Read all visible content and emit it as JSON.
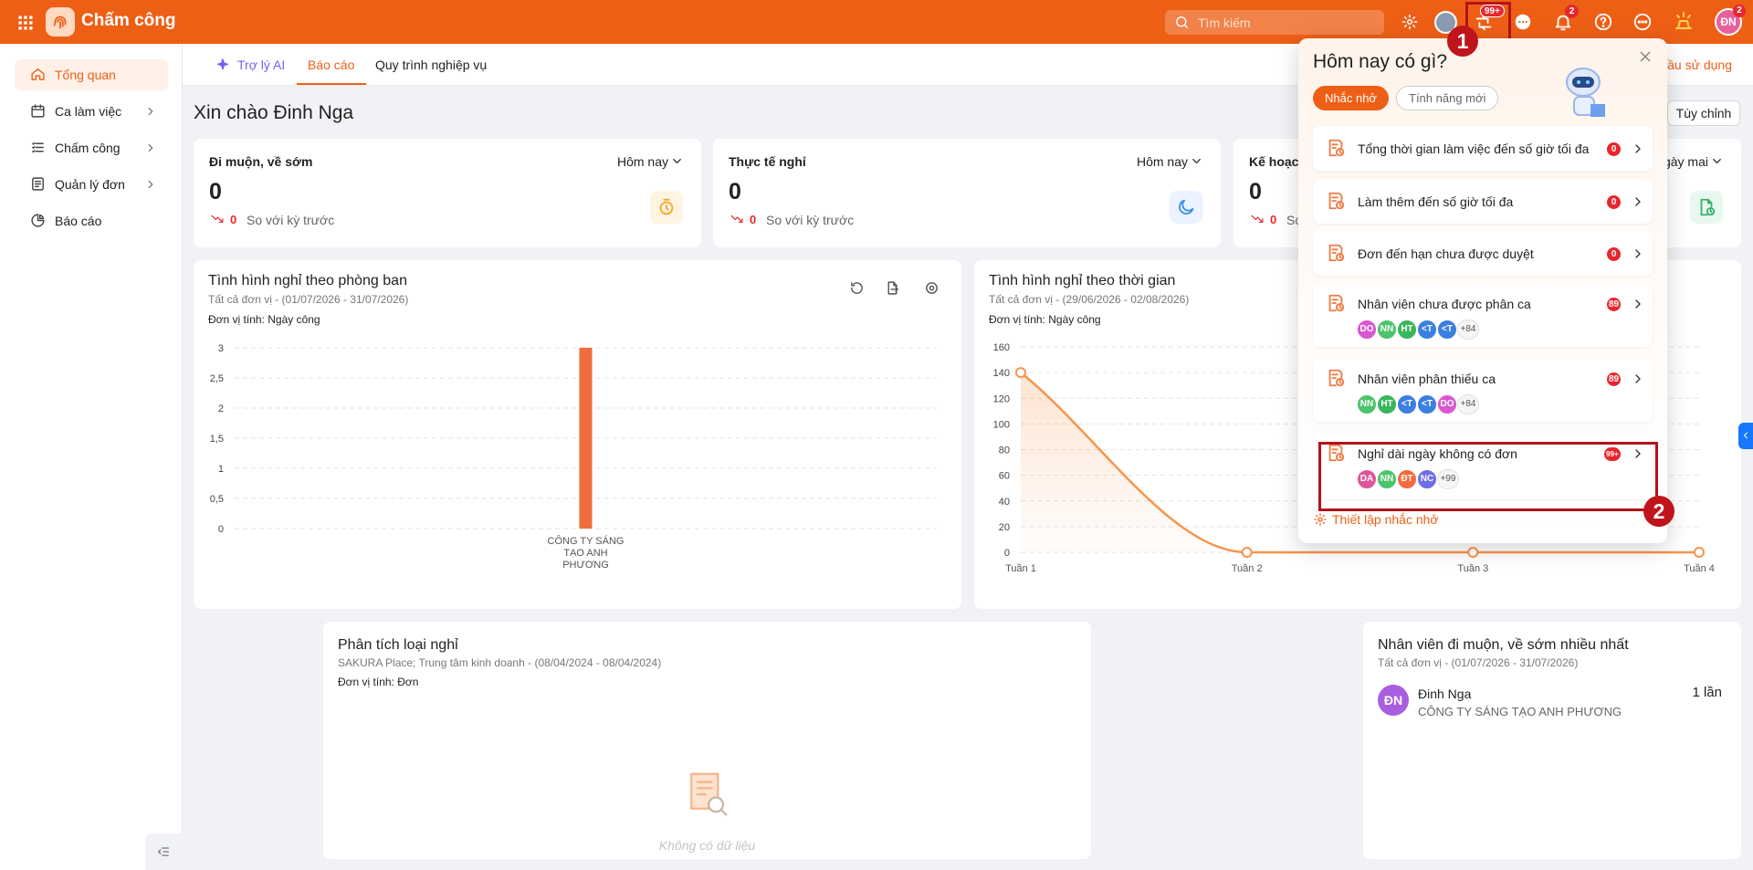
{
  "header": {
    "app_name": "Chấm công",
    "search_placeholder": "Tìm kiếm",
    "request_badge": "99+",
    "notification_badge": "2",
    "user_initials": "ĐN",
    "user_badge": "2"
  },
  "sidebar": {
    "items": [
      "Tổng quan",
      "Ca làm việc",
      "Chấm công",
      "Quản lý đơn",
      "Báo cáo"
    ]
  },
  "tabs": [
    "Trợ lý AI",
    "Báo cáo",
    "Quy trình nghiệp vụ"
  ],
  "greeting": "Xin chào Đinh Nga",
  "guide_link": "ầu sử dụng",
  "customize": "Tùy chỉnh",
  "stat_cards": [
    {
      "title": "Đi muộn, về sớm",
      "period": "Hôm nay",
      "value": 0,
      "change": 0,
      "compare": "So với kỳ trước"
    },
    {
      "title": "Thực tế nghỉ",
      "period": "Hôm nay",
      "value": 0,
      "change": 0,
      "compare": "So với kỳ trước"
    },
    {
      "title": "Kế hoạch nghỉ",
      "period": "Ngày mai",
      "value": 0,
      "change": 0,
      "compare": "So với kỳ trước"
    }
  ],
  "chart_data": [
    {
      "type": "bar",
      "title": "Tình hình nghỉ theo phòng ban",
      "subtitle": "Tất cả đơn vị - (01/07/2026 - 31/07/2026)",
      "unit_label": "Đơn vị tính: Ngày công",
      "categories": [
        "CÔNG TY SÁNG TẠO ANH PHƯƠNG"
      ],
      "values": [
        3
      ],
      "color": "#f26b3a",
      "ylim": [
        0,
        3
      ],
      "yticks": [
        0,
        {
          "value": 0.5,
          "label": "0,5"
        },
        1,
        {
          "value": 1.5,
          "label": "1,5"
        },
        2,
        {
          "value": 2.5,
          "label": "2,5"
        },
        3
      ],
      "grid": true
    },
    {
      "type": "line",
      "title": "Tình hình nghỉ theo thời gian",
      "subtitle": "Tất cả đơn vị - (29/06/2026 - 02/08/2026)",
      "unit_label": "Đơn vị tính: Ngày công",
      "categories": [
        "Tuần 1",
        "Tuần 2",
        "Tuần 3",
        "Tuần 4"
      ],
      "values": [
        140,
        0,
        0,
        0
      ],
      "color": "#f7944a",
      "ylim": [
        0,
        160
      ],
      "yticks": [
        0,
        20,
        40,
        60,
        80,
        100,
        120,
        140,
        160
      ],
      "grid": true
    }
  ],
  "leave_analysis": {
    "title": "Phân tích loại nghỉ",
    "subtitle": "SAKURA Place; Trung tâm kinh doanh - (08/04/2024 - 08/04/2024)",
    "unit_label": "Đơn vị tính: Đơn",
    "empty": "Không có dữ liệu"
  },
  "top_late": {
    "title": "Nhân viên đi muộn, về sớm nhiều nhất",
    "subtitle": "Tất cả đơn vị - (01/07/2026 - 31/07/2026)",
    "rows": [
      {
        "initials": "ĐN",
        "name": "Đinh Nga",
        "company": "CÔNG TY SÁNG TẠO ANH PHƯƠNG",
        "count": "1 lần"
      }
    ]
  },
  "popup": {
    "title": "Hôm nay có gì?",
    "tabs": [
      "Nhắc nhở",
      "Tính năng mới"
    ],
    "items": [
      {
        "label": "Tổng thời gian làm việc đến số giờ tối đa",
        "badge": "0"
      },
      {
        "label": "Làm thêm đến số giờ tối đa",
        "badge": "0"
      },
      {
        "label": "Đơn đến hạn chưa được duyệt",
        "badge": "0"
      },
      {
        "label": "Nhân viên chưa được phân ca",
        "badge": "89",
        "avatars": [
          {
            "initials": "DO",
            "color": "#d957d0"
          },
          {
            "initials": "NN",
            "color": "#4cc46a"
          },
          {
            "initials": "HT",
            "color": "#3bb55e"
          },
          {
            "initials": "<T",
            "color": "#3b7fe0"
          },
          {
            "initials": "<T",
            "color": "#3b7fe0"
          }
        ],
        "more": "+84"
      },
      {
        "label": "Nhân viên phân thiếu ca",
        "badge": "89",
        "avatars": [
          {
            "initials": "NN",
            "color": "#4cc46a"
          },
          {
            "initials": "HT",
            "color": "#3bb55e"
          },
          {
            "initials": "<T",
            "color": "#3b7fe0"
          },
          {
            "initials": "<T",
            "color": "#3b7fe0"
          },
          {
            "initials": "DO",
            "color": "#d957d0"
          }
        ],
        "more": "+84"
      },
      {
        "label": "Nghỉ dài ngày không có đơn",
        "badge": "99+",
        "avatars": [
          {
            "initials": "DA",
            "color": "#e0559a"
          },
          {
            "initials": "NN",
            "color": "#4cc46a"
          },
          {
            "initials": "ĐT",
            "color": "#f26b3a"
          },
          {
            "initials": "NC",
            "color": "#6e6ee6"
          }
        ],
        "more": "+99"
      }
    ],
    "footer": "Thiết lập nhắc nhở"
  },
  "annotations": [
    "1",
    "2"
  ]
}
